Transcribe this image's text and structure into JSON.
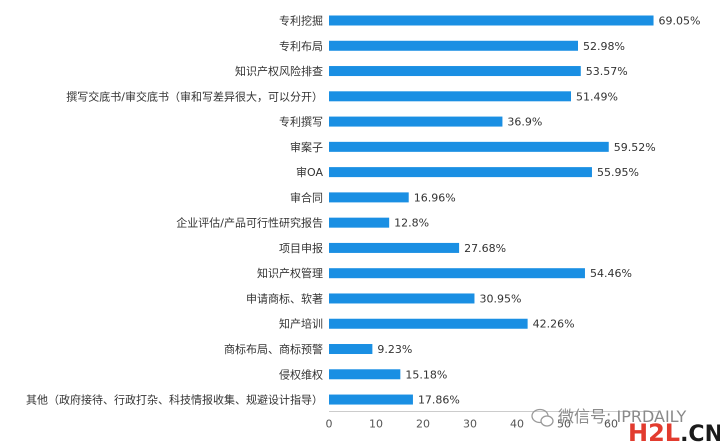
{
  "chart_data": {
    "type": "bar",
    "orientation": "horizontal",
    "categories": [
      "专利挖掘",
      "专利布局",
      "知识产权风险排查",
      "撰写交底书/审交底书（审和写差异很大，可以分开）",
      "专利撰写",
      "审案子",
      "审OA",
      "审合同",
      "企业评估/产品可行性研究报告",
      "项目申报",
      "知识产权管理",
      "申请商标、软著",
      "知产培训",
      "商标布局、商标预警",
      "侵权维权",
      "其他（政府接待、行政打杂、科技情报收集、规避设计指导）"
    ],
    "values": [
      69.05,
      52.98,
      53.57,
      51.49,
      36.9,
      59.52,
      55.95,
      16.96,
      12.8,
      27.68,
      54.46,
      30.95,
      42.26,
      9.23,
      15.18,
      17.86
    ],
    "value_labels": [
      "69.05%",
      "52.98%",
      "53.57%",
      "51.49%",
      "36.9%",
      "59.52%",
      "55.95%",
      "16.96%",
      "12.8%",
      "27.68%",
      "54.46%",
      "30.95%",
      "42.26%",
      "9.23%",
      "15.18%",
      "17.86%"
    ],
    "x_ticks": [
      "0",
      "10",
      "20",
      "30",
      "40",
      "50",
      "60"
    ],
    "xlim": [
      0,
      70
    ],
    "bar_color": "#1a8fe3",
    "grid": false,
    "legend": "none"
  },
  "watermark": {
    "wechat_text": "微信号: IPRDAILY",
    "logo_main": "H2L",
    "logo_suffix": ".CN",
    "logo_main_color": "#e23b2e",
    "logo_suffix_color": "#1b1b1b"
  }
}
